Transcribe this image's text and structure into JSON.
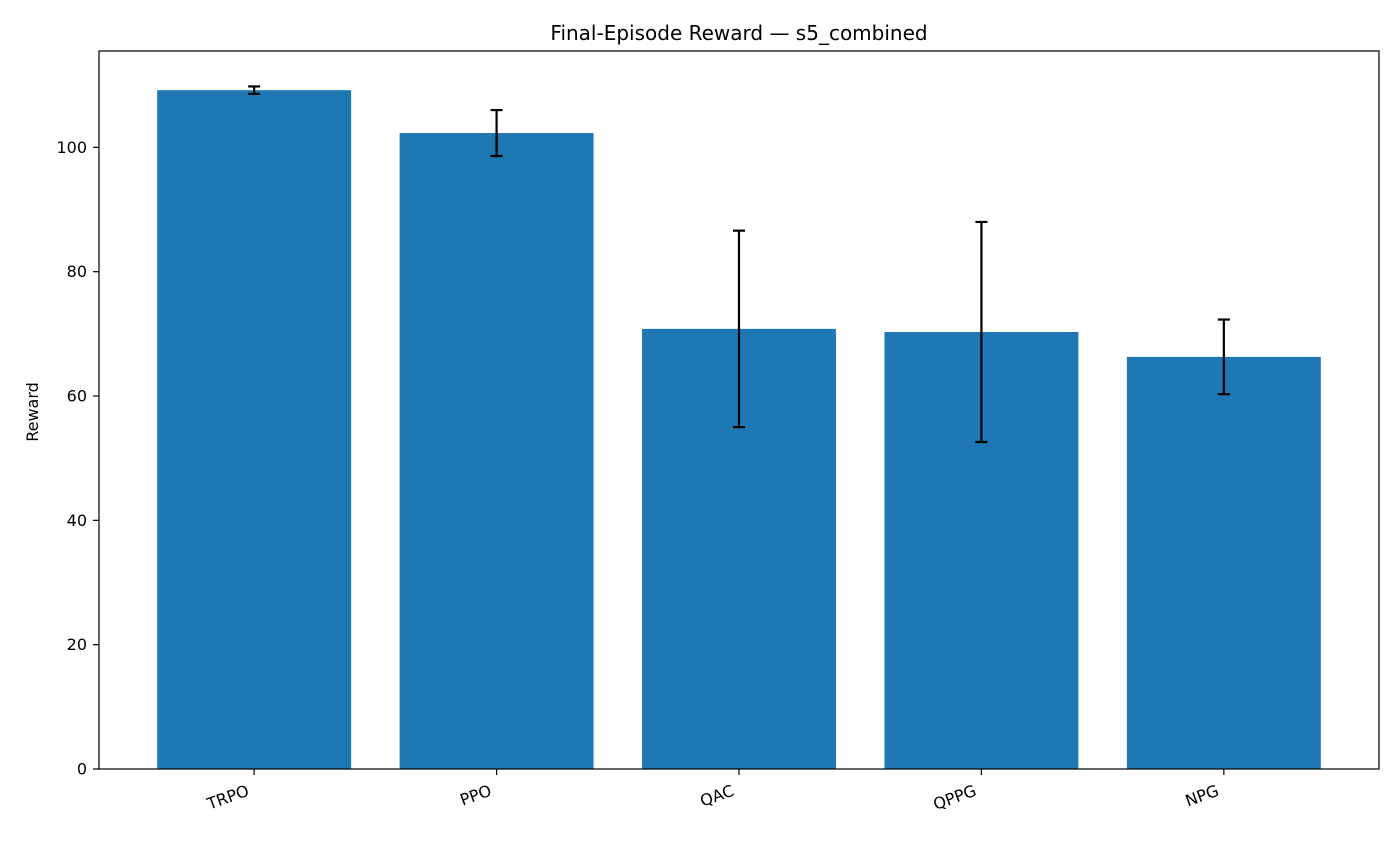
{
  "chart_data": {
    "type": "bar",
    "title": "Final-Episode Reward — s5_combined",
    "xlabel": "",
    "ylabel": "Reward",
    "categories": [
      "TRPO",
      "PPO",
      "QAC",
      "QPPG",
      "NPG"
    ],
    "values": [
      109.2,
      102.3,
      70.8,
      70.3,
      66.3
    ],
    "errors": [
      0.6,
      3.7,
      15.8,
      17.7,
      6.0
    ],
    "ylim": [
      0,
      115.5
    ],
    "yticks": [
      0,
      20,
      40,
      60,
      80,
      100
    ],
    "bar_color": "#1f77b4",
    "error_color": "#000000",
    "grid": false,
    "legend": "none"
  }
}
